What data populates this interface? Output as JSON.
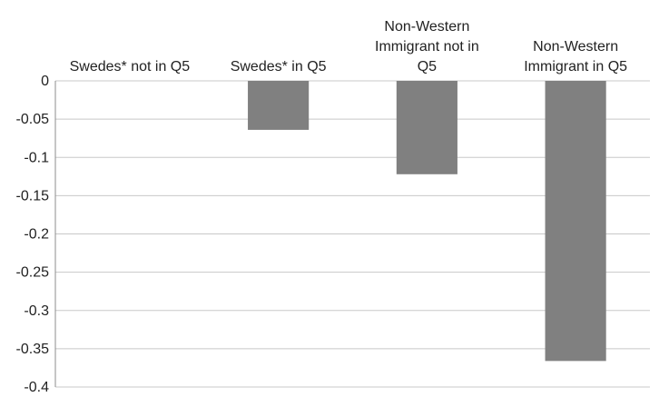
{
  "chart_data": {
    "type": "bar",
    "categories": [
      [
        "Swedes* not in Q5"
      ],
      [
        "Swedes* in Q5"
      ],
      [
        "Non-Western",
        "Immigrant not in",
        "Q5"
      ],
      [
        "Non-Western",
        "Immigrant in Q5"
      ]
    ],
    "values": [
      0,
      -0.064,
      -0.122,
      -0.366
    ],
    "ylim": [
      -0.4,
      0
    ],
    "yticks": [
      "0",
      "-0.05",
      "-0.1",
      "-0.15",
      "-0.2",
      "-0.25",
      "-0.3",
      "-0.35",
      "-0.4"
    ],
    "grid": true,
    "bar_color": "#808080",
    "legend": "none",
    "category_label_position": "top"
  }
}
